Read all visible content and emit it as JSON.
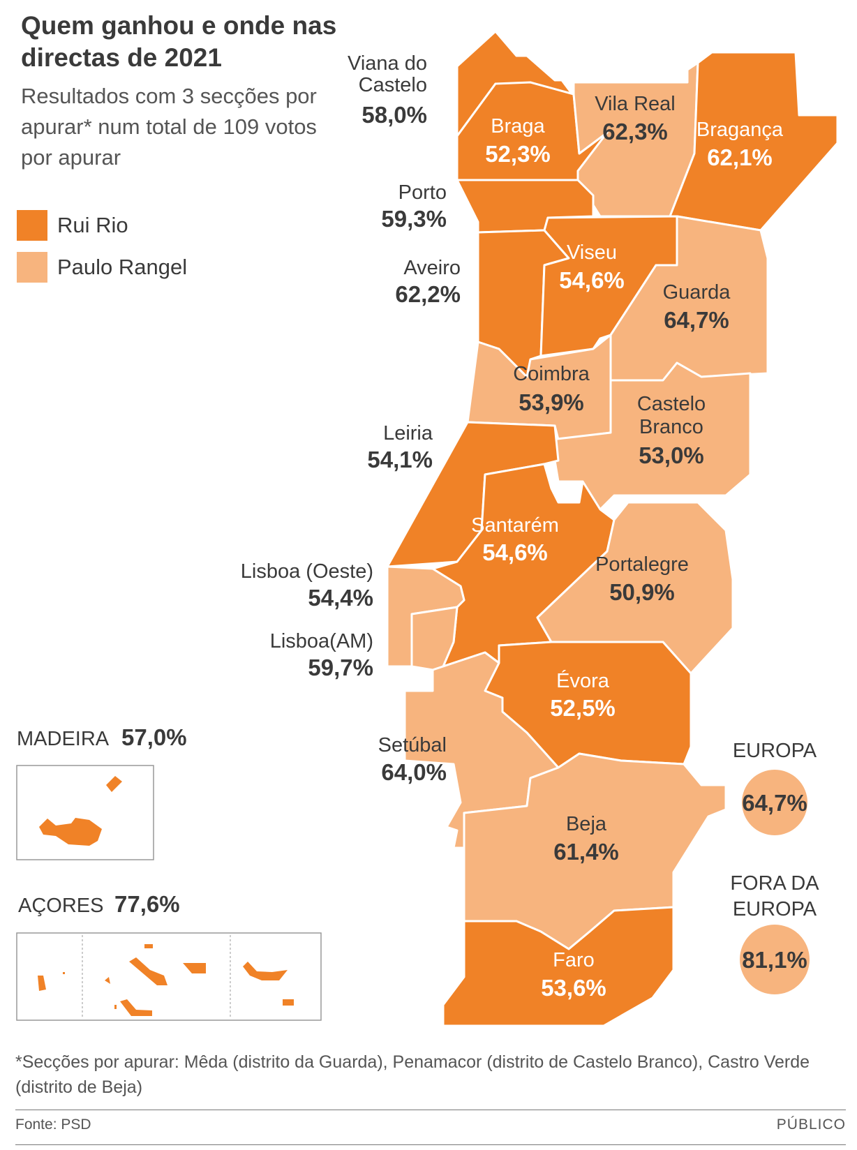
{
  "title": "Quem ganhou e onde nas directas de 2021",
  "subtitle": "Resultados com 3 secções por apurar* num total de 109 votos por apurar",
  "colors": {
    "rui_rio": "#f08227",
    "paulo_rangel": "#f7b47e"
  },
  "legend": [
    {
      "label": "Rui Rio",
      "color": "#f08227"
    },
    {
      "label": "Paulo Rangel",
      "color": "#f7b47e"
    }
  ],
  "districts": {
    "viana": {
      "name": "Viana do Castelo",
      "value": "58,0%",
      "winner": "Rui Rio"
    },
    "braga": {
      "name": "Braga",
      "value": "52,3%",
      "winner": "Rui Rio"
    },
    "vila_real": {
      "name": "Vila Real",
      "value": "62,3%",
      "winner": "Paulo Rangel"
    },
    "braganca": {
      "name": "Bragança",
      "value": "62,1%",
      "winner": "Rui Rio"
    },
    "porto": {
      "name": "Porto",
      "value": "59,3%",
      "winner": "Rui Rio"
    },
    "aveiro": {
      "name": "Aveiro",
      "value": "62,2%",
      "winner": "Rui Rio"
    },
    "viseu": {
      "name": "Viseu",
      "value": "54,6%",
      "winner": "Rui Rio"
    },
    "guarda": {
      "name": "Guarda",
      "value": "64,7%",
      "winner": "Paulo Rangel"
    },
    "coimbra": {
      "name": "Coimbra",
      "value": "53,9%",
      "winner": "Paulo Rangel"
    },
    "castelo_branco": {
      "name": "Castelo Branco",
      "value": "53,0%",
      "winner": "Paulo Rangel"
    },
    "leiria": {
      "name": "Leiria",
      "value": "54,1%",
      "winner": "Rui Rio"
    },
    "santarem": {
      "name": "Santarém",
      "value": "54,6%",
      "winner": "Rui Rio"
    },
    "portalegre": {
      "name": "Portalegre",
      "value": "50,9%",
      "winner": "Paulo Rangel"
    },
    "lisboa_oeste": {
      "name": "Lisboa (Oeste)",
      "value": "54,4%",
      "winner": "Paulo Rangel"
    },
    "lisboa_am": {
      "name": "Lisboa(AM)",
      "value": "59,7%",
      "winner": "Paulo Rangel"
    },
    "evora": {
      "name": "Évora",
      "value": "52,5%",
      "winner": "Rui Rio"
    },
    "setubal": {
      "name": "Setúbal",
      "value": "64,0%",
      "winner": "Paulo Rangel"
    },
    "beja": {
      "name": "Beja",
      "value": "61,4%",
      "winner": "Paulo Rangel"
    },
    "faro": {
      "name": "Faro",
      "value": "53,6%",
      "winner": "Rui Rio"
    }
  },
  "islands": {
    "madeira": {
      "name": "MADEIRA",
      "value": "57,0%",
      "winner": "Rui Rio"
    },
    "acores": {
      "name": "AÇORES",
      "value": "77,6%",
      "winner": "Rui Rio"
    }
  },
  "abroad": {
    "europa": {
      "name": "EUROPA",
      "value": "64,7%",
      "winner": "Paulo Rangel"
    },
    "fora": {
      "name": "FORA DA EUROPA",
      "value": "81,1%",
      "winner": "Paulo Rangel"
    }
  },
  "footnote": "*Secções por apurar: Mêda (distrito da Guarda), Penamacor (distrito de Castelo Branco), Castro Verde (distrito de Beja)",
  "source": "Fonte: PSD",
  "brand": "PÚBLICO"
}
